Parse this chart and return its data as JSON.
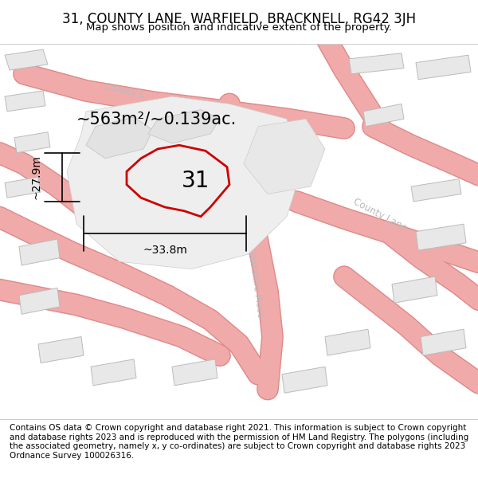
{
  "title": "31, COUNTY LANE, WARFIELD, BRACKNELL, RG42 3JH",
  "subtitle": "Map shows position and indicative extent of the property.",
  "footer": "Contains OS data © Crown copyright and database right 2021. This information is subject to Crown copyright and database rights 2023 and is reproduced with the permission of HM Land Registry. The polygons (including the associated geometry, namely x, y co-ordinates) are subject to Crown copyright and database rights 2023 Ordnance Survey 100026316.",
  "area_label": "~563m²/~0.139ac.",
  "width_label": "~33.8m",
  "height_label": "~27.9m",
  "number_label": "31",
  "road_color": "#f0aaaa",
  "road_edge_color": "#e08888",
  "building_fill": "#e8e8e8",
  "building_edge": "#bbbbbb",
  "highlight_color": "#cc0000",
  "title_fontsize": 12,
  "subtitle_fontsize": 9.5,
  "footer_fontsize": 7.5,
  "road_label_color": "#bbbbbb",
  "road_label_size": 8.5,
  "dim_fontsize": 10,
  "area_fontsize": 15,
  "number_fontsize": 20
}
